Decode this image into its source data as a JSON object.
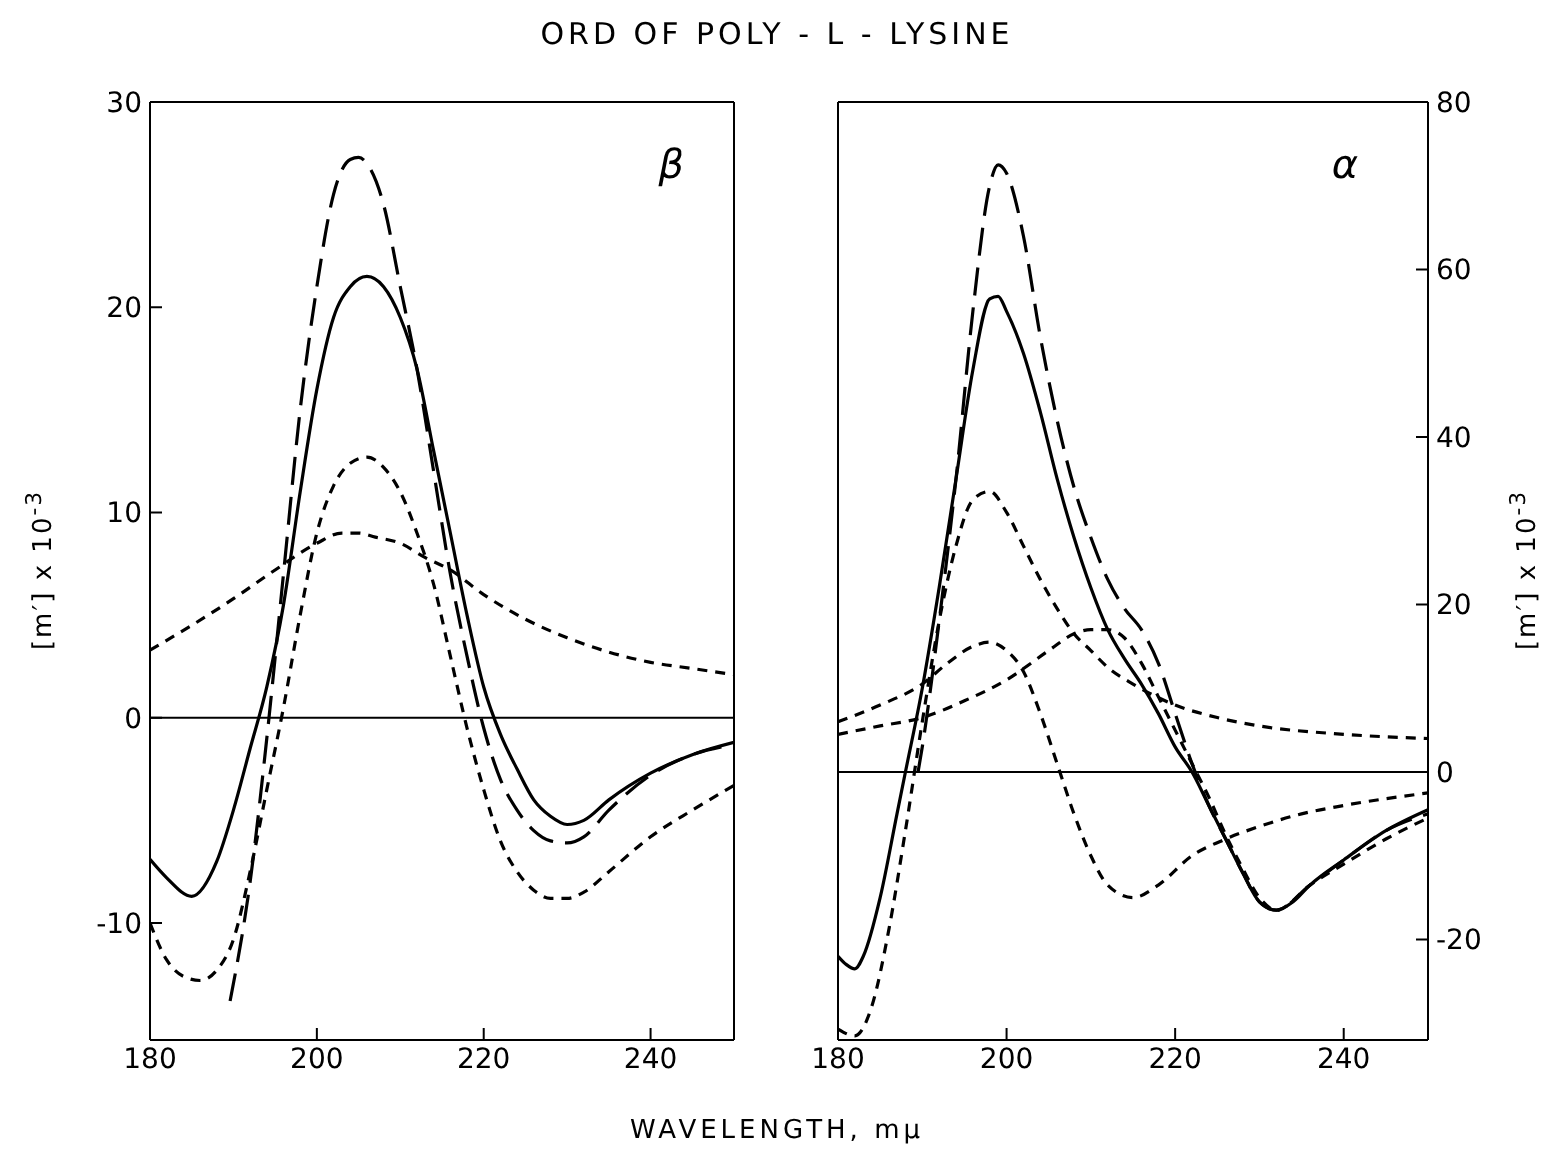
{
  "chart_data": [
    {
      "type": "line",
      "title": "ORD OF POLY - L - LYSINE",
      "xlabel": "WAVELENGTH, mμ",
      "ylabel": "[m′] x 10$^{-3}$",
      "annotations": [
        "β"
      ],
      "xlim": [
        180,
        250
      ],
      "xticks": [
        180,
        200,
        220,
        240
      ],
      "ylim": [
        -15.7,
        30
      ],
      "yticks": [
        -10,
        0,
        10,
        20,
        30
      ],
      "ref_lines": [
        {
          "axis": "y",
          "value": 0,
          "color": "#000000"
        }
      ],
      "series": [
        {
          "color": "#000000",
          "line_style": "solid",
          "x": [
            180,
            182,
            185,
            188,
            190,
            192,
            194,
            196,
            198,
            200,
            202,
            204,
            206,
            208,
            210,
            212,
            214,
            216,
            218,
            220,
            222,
            224,
            226,
            228,
            230,
            232,
            235,
            240,
            245,
            250
          ],
          "values": [
            -6.9,
            -7.8,
            -8.7,
            -7.0,
            -4.5,
            -1.5,
            1.5,
            5.5,
            11,
            16,
            19.5,
            21,
            21.5,
            21,
            19.5,
            17,
            13,
            9,
            5,
            1.5,
            -0.8,
            -2.5,
            -4,
            -4.8,
            -5.2,
            -5,
            -4,
            -2.7,
            -1.8,
            -1.2
          ]
        },
        {
          "color": "#000000",
          "line_style": "dashed",
          "x": [
            189.6,
            192,
            194,
            196,
            198,
            200,
            202,
            204,
            205,
            206,
            208,
            210,
            212,
            214,
            216,
            218,
            220,
            222,
            224,
            226,
            228,
            230,
            232,
            235,
            240,
            245,
            250
          ],
          "values": [
            -13.8,
            -8,
            -1,
            7,
            15,
            21,
            25.5,
            27.2,
            27.3,
            27,
            25,
            21,
            17,
            12,
            7,
            3,
            -0.5,
            -3,
            -4.5,
            -5.5,
            -6,
            -6.1,
            -5.8,
            -4.5,
            -2.8,
            -1.8,
            -1.3
          ]
        },
        {
          "color": "#000000",
          "line_style": "dotted",
          "x": [
            180,
            182,
            184,
            186,
            188,
            190,
            192,
            194,
            196,
            198,
            200,
            202,
            204,
            206,
            208,
            210,
            212,
            214,
            216,
            218,
            220,
            222,
            224,
            226,
            228,
            230,
            232,
            235,
            240,
            245,
            250
          ],
          "values": [
            -10,
            -11.8,
            -12.6,
            -12.8,
            -12.3,
            -10.8,
            -7.5,
            -3.5,
            0.5,
            5,
            9,
            11.3,
            12.4,
            12.7,
            12.2,
            11,
            9,
            6.5,
            3,
            -0.5,
            -3.5,
            -6,
            -7.5,
            -8.4,
            -8.8,
            -8.8,
            -8.5,
            -7.5,
            -5.8,
            -4.5,
            -3.3
          ]
        },
        {
          "color": "#000000",
          "line_style": "dotted",
          "x": [
            180,
            185,
            190,
            195,
            200,
            203,
            205,
            207,
            210,
            213,
            216,
            220,
            225,
            230,
            235,
            240,
            245,
            250
          ],
          "values": [
            3.3,
            4.5,
            5.8,
            7.2,
            8.5,
            9,
            9,
            8.8,
            8.5,
            7.8,
            7.2,
            6,
            4.8,
            3.9,
            3.2,
            2.7,
            2.4,
            2.1
          ]
        }
      ]
    },
    {
      "type": "line",
      "y2label": "[m′] x 10$^{-3}$",
      "annotations": [
        "α"
      ],
      "xlim": [
        180,
        250
      ],
      "xticks": [
        180,
        200,
        220,
        240
      ],
      "y2lim": [
        -32,
        80
      ],
      "y2ticks": [
        -20,
        0,
        20,
        40,
        60,
        80
      ],
      "ref_lines": [
        {
          "axis": "y2",
          "value": 0,
          "color": "#000000"
        }
      ],
      "series": [
        {
          "color": "#000000",
          "line_style": "solid",
          "axis": "y2",
          "x": [
            180,
            181,
            182,
            183,
            185,
            187,
            188,
            190,
            192,
            194,
            196,
            198,
            199,
            200,
            202,
            204,
            206,
            208,
            210,
            212,
            214,
            216,
            218,
            220,
            222,
            224,
            226,
            228,
            230,
            232,
            234,
            236,
            240,
            245,
            250
          ],
          "values": [
            -22,
            -23,
            -23.5,
            -22,
            -15,
            -5,
            0,
            10,
            22,
            35,
            48,
            56.5,
            56.8,
            55,
            50,
            43,
            35,
            28,
            22,
            17,
            13.5,
            10.5,
            7,
            3,
            0,
            -4,
            -8,
            -12,
            -15.5,
            -16.5,
            -15.5,
            -13.5,
            -10.5,
            -7,
            -4.5
          ]
        },
        {
          "color": "#000000",
          "line_style": "dashed",
          "axis": "y2",
          "x": [
            189.5,
            190,
            192,
            194,
            196,
            198,
            199,
            200,
            202,
            204,
            206,
            208,
            210,
            212,
            214,
            216,
            218,
            220,
            222,
            224,
            226,
            228,
            230,
            232,
            236,
            240,
            245,
            250
          ],
          "values": [
            0,
            3,
            18,
            35,
            55,
            70,
            72.5,
            71.5,
            64,
            52,
            42,
            34,
            28,
            23,
            19.5,
            17,
            13,
            7,
            1,
            -4,
            -8,
            -12,
            -15.5,
            -16.5,
            -13.5,
            -10.5,
            -7,
            -5
          ]
        },
        {
          "color": "#000000",
          "line_style": "dotted",
          "axis": "y2",
          "x": [
            180,
            182,
            184,
            186,
            188,
            190,
            192,
            194,
            196,
            198,
            200,
            202,
            204,
            206,
            208,
            210,
            212,
            215,
            220,
            225,
            230,
            240,
            250
          ],
          "values": [
            -30.7,
            -31.5,
            -28,
            -19,
            -7,
            6,
            18,
            27,
            32.5,
            33.5,
            31,
            27,
            23,
            19.5,
            16.5,
            14.5,
            12.5,
            10.5,
            8,
            6.5,
            5.5,
            4.5,
            4
          ]
        },
        {
          "color": "#000000",
          "line_style": "dotted",
          "axis": "y2",
          "x": [
            180,
            185,
            190,
            193,
            196,
            198,
            200,
            202,
            204,
            206,
            208,
            210,
            212,
            215,
            218,
            222,
            226,
            230,
            235,
            240,
            250
          ],
          "values": [
            6,
            8,
            10.5,
            13,
            15,
            15.5,
            14.5,
            12,
            7,
            1,
            -5,
            -10,
            -13.5,
            -15,
            -13.5,
            -10,
            -8,
            -6.5,
            -5,
            -4,
            -2.5
          ]
        },
        {
          "color": "#000000",
          "line_style": "dotted",
          "axis": "y2",
          "x": [
            180,
            185,
            190,
            195,
            200,
            205,
            208,
            210,
            212,
            214,
            216,
            218,
            220,
            222,
            224,
            226,
            228,
            230,
            232,
            236,
            240,
            245,
            250
          ],
          "values": [
            4.5,
            5.5,
            6.5,
            8.5,
            11,
            14.5,
            16.5,
            17,
            17,
            16,
            13,
            9,
            5,
            1,
            -3,
            -7.5,
            -11.5,
            -15,
            -16.5,
            -13.5,
            -11,
            -8,
            -5.5
          ]
        }
      ]
    }
  ]
}
